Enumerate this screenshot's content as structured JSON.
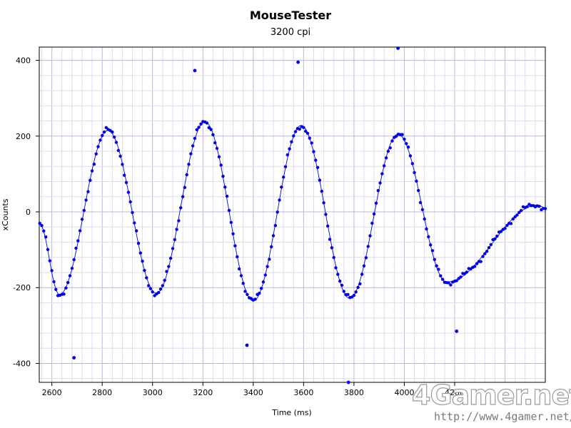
{
  "chart_data": {
    "type": "scatter",
    "title": "MouseTester",
    "subtitle": "3200 cpi",
    "xlabel": "Time (ms)",
    "ylabel": "xCounts",
    "xlim": [
      2550,
      4560
    ],
    "ylim": [
      -450,
      435
    ],
    "x_ticks": [
      2600,
      2800,
      3000,
      3200,
      3400,
      3600,
      3800,
      4000,
      4200
    ],
    "y_ticks": [
      -400,
      -200,
      0,
      200,
      400
    ],
    "grid": true,
    "series": [
      {
        "color": "#0000ee",
        "marker": "dot",
        "line": true,
        "waveform": {
          "period_ms": 385,
          "peak_times_ms": [
            2823,
            3208,
            3590,
            3975
          ],
          "trough_times_ms": [
            2630,
            3015,
            3400,
            3783,
            4168
          ],
          "peak_values": [
            215,
            238,
            228,
            205
          ],
          "trough_values": [
            -218,
            -215,
            -235,
            -228,
            -185
          ],
          "start_ms": 2550,
          "end_ms": 4560,
          "end_value": 10
        },
        "outliers": [
          {
            "x": 2688,
            "y": -385
          },
          {
            "x": 3168,
            "y": 373
          },
          {
            "x": 3375,
            "y": -352
          },
          {
            "x": 3578,
            "y": 395
          },
          {
            "x": 3778,
            "y": -450
          },
          {
            "x": 3975,
            "y": 432
          },
          {
            "x": 4208,
            "y": -315
          }
        ]
      }
    ]
  },
  "watermark": {
    "brand": "4Gamer.net",
    "url": "http://www.4gamer.net/"
  }
}
